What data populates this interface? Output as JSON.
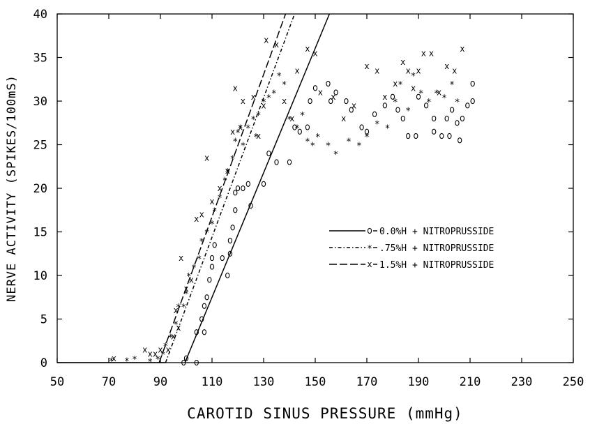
{
  "chart_data": {
    "type": "scatter",
    "title": "",
    "xlabel": "CAROTID SINUS PRESSURE (mmHg)",
    "ylabel": "NERVE ACTIVITY (SPIKES/100mS)",
    "xlim": [
      50,
      250
    ],
    "ylim": [
      0,
      40
    ],
    "x_ticks": [
      "50",
      "70",
      "90",
      "110",
      "130",
      "150",
      "170",
      "190",
      "210",
      "230",
      "250"
    ],
    "y_ticks": [
      "0",
      "5",
      "10",
      "15",
      "20",
      "25",
      "30",
      "35",
      "40"
    ],
    "grid": false,
    "legend_position": "right-middle",
    "series": [
      {
        "name": "0.0%H + NITROPRUSSIDE",
        "legend_marker": "o",
        "line_style": "solid",
        "fit_line": [
          [
            99.5,
            0
          ],
          [
            155.5,
            40
          ]
        ],
        "points": [
          [
            99,
            0
          ],
          [
            100,
            0.5
          ],
          [
            104,
            0
          ],
          [
            104,
            3.5
          ],
          [
            107,
            3.5
          ],
          [
            106,
            5
          ],
          [
            107,
            6.5
          ],
          [
            108,
            7.5
          ],
          [
            109,
            9.5
          ],
          [
            110,
            11
          ],
          [
            110,
            12
          ],
          [
            111,
            13.5
          ],
          [
            114,
            12
          ],
          [
            116,
            10
          ],
          [
            117,
            12.5
          ],
          [
            117,
            14
          ],
          [
            118,
            15.5
          ],
          [
            119,
            17.5
          ],
          [
            119,
            19.5
          ],
          [
            120,
            20
          ],
          [
            124,
            20.5
          ],
          [
            122,
            20
          ],
          [
            125,
            18
          ],
          [
            130,
            20.5
          ],
          [
            132,
            24
          ],
          [
            135,
            23
          ],
          [
            140,
            23
          ],
          [
            142,
            27
          ],
          [
            144,
            26.5
          ],
          [
            147,
            27
          ],
          [
            148,
            30
          ],
          [
            150,
            31.5
          ],
          [
            155,
            32
          ],
          [
            156,
            30
          ],
          [
            158,
            31
          ],
          [
            162,
            30
          ],
          [
            164,
            29
          ],
          [
            168,
            27
          ],
          [
            170,
            26.5
          ],
          [
            173,
            28.5
          ],
          [
            177,
            29.5
          ],
          [
            180,
            30.5
          ],
          [
            182,
            29
          ],
          [
            184,
            28
          ],
          [
            186,
            26
          ],
          [
            189,
            26
          ],
          [
            190,
            30.5
          ],
          [
            193,
            29.5
          ],
          [
            196,
            28
          ],
          [
            196,
            26.5
          ],
          [
            199,
            26
          ],
          [
            201,
            28
          ],
          [
            202,
            26
          ],
          [
            203,
            29
          ],
          [
            205,
            27.5
          ],
          [
            206,
            25.5
          ],
          [
            207,
            28
          ],
          [
            209,
            29.5
          ],
          [
            211,
            30
          ],
          [
            211,
            32
          ]
        ]
      },
      {
        "name": ".75%H + NITROPRUSSIDE",
        "legend_marker": "*",
        "line_style": "dash-dot",
        "fit_line": [
          [
            92,
            0
          ],
          [
            142,
            40
          ]
        ],
        "points": [
          [
            71,
            0.3
          ],
          [
            77,
            0.3
          ],
          [
            80,
            0.5
          ],
          [
            86,
            0.2
          ],
          [
            89,
            0.5
          ],
          [
            91,
            1
          ],
          [
            92,
            2
          ],
          [
            94,
            3
          ],
          [
            96,
            4.5
          ],
          [
            97,
            6.5
          ],
          [
            99,
            6.5
          ],
          [
            100,
            8
          ],
          [
            101,
            10
          ],
          [
            103,
            11
          ],
          [
            105,
            12
          ],
          [
            106,
            14
          ],
          [
            108,
            15
          ],
          [
            110,
            16
          ],
          [
            111,
            17.5
          ],
          [
            113,
            19
          ],
          [
            115,
            21
          ],
          [
            116,
            22
          ],
          [
            118,
            23.5
          ],
          [
            119,
            25.5
          ],
          [
            120,
            26.5
          ],
          [
            121,
            27
          ],
          [
            122,
            25
          ],
          [
            124,
            27
          ],
          [
            126,
            28
          ],
          [
            127,
            26
          ],
          [
            128,
            28.5
          ],
          [
            130,
            30
          ],
          [
            132,
            30.5
          ],
          [
            134,
            31
          ],
          [
            136,
            33
          ],
          [
            138,
            32
          ],
          [
            140,
            28
          ],
          [
            143,
            27
          ],
          [
            145,
            28.5
          ],
          [
            147,
            25.5
          ],
          [
            149,
            25
          ],
          [
            151,
            26
          ],
          [
            155,
            25
          ],
          [
            158,
            24
          ],
          [
            163,
            25.5
          ],
          [
            167,
            25
          ],
          [
            170,
            26
          ],
          [
            174,
            27.5
          ],
          [
            178,
            27
          ],
          [
            181,
            30
          ],
          [
            183,
            32
          ],
          [
            186,
            29
          ],
          [
            188,
            33
          ],
          [
            191,
            31
          ],
          [
            194,
            30
          ],
          [
            197,
            31
          ],
          [
            200,
            30.5
          ],
          [
            203,
            32
          ],
          [
            205,
            30
          ]
        ]
      },
      {
        "name": "1.5%H + NITROPRUSSIDE",
        "legend_marker": "x",
        "line_style": "long-dash",
        "fit_line": [
          [
            89.5,
            0
          ],
          [
            138.5,
            40
          ]
        ],
        "points": [
          [
            72,
            0.5
          ],
          [
            84,
            1.5
          ],
          [
            86,
            1
          ],
          [
            88,
            1
          ],
          [
            90,
            1.5
          ],
          [
            93,
            1.5
          ],
          [
            95,
            3
          ],
          [
            96,
            6
          ],
          [
            97,
            4
          ],
          [
            98,
            12
          ],
          [
            100,
            8.5
          ],
          [
            102,
            9.5
          ],
          [
            104,
            16.5
          ],
          [
            106,
            17
          ],
          [
            108,
            23.5
          ],
          [
            110,
            18.5
          ],
          [
            113,
            20
          ],
          [
            116,
            22
          ],
          [
            118,
            26.5
          ],
          [
            119,
            31.5
          ],
          [
            121,
            27
          ],
          [
            122,
            30
          ],
          [
            126,
            30.5
          ],
          [
            128,
            26
          ],
          [
            130,
            29.5
          ],
          [
            131,
            37
          ],
          [
            135,
            36.5
          ],
          [
            138,
            30
          ],
          [
            141,
            28
          ],
          [
            143,
            33.5
          ],
          [
            147,
            36
          ],
          [
            150,
            35.5
          ],
          [
            152,
            31
          ],
          [
            157,
            30.5
          ],
          [
            161,
            28
          ],
          [
            165,
            29.5
          ],
          [
            170,
            34
          ],
          [
            174,
            33.5
          ],
          [
            177,
            30.5
          ],
          [
            181,
            32
          ],
          [
            184,
            34.5
          ],
          [
            186,
            33.5
          ],
          [
            188,
            31.5
          ],
          [
            190,
            33.5
          ],
          [
            192,
            35.5
          ],
          [
            195,
            35.5
          ],
          [
            198,
            31
          ],
          [
            201,
            34
          ],
          [
            204,
            33.5
          ],
          [
            207,
            36
          ]
        ]
      }
    ]
  }
}
